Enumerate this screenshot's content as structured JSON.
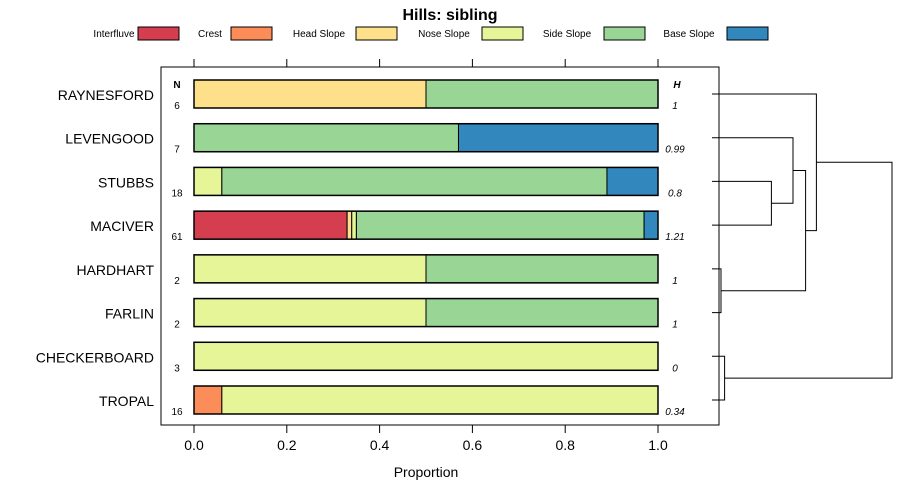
{
  "chart_data": {
    "type": "bar",
    "orientation": "horizontal-stacked",
    "title": "Hills: sibling",
    "xlabel": "Proportion",
    "xlim": [
      0,
      1
    ],
    "xticks": [
      0.0,
      0.2,
      0.4,
      0.6,
      0.8,
      1.0
    ],
    "xtick_labels": [
      "0.0",
      "0.2",
      "0.4",
      "0.6",
      "0.8",
      "1.0"
    ],
    "n_header": "N",
    "h_header": "H",
    "legend": [
      {
        "name": "Interfluve",
        "color": "#d53e4f"
      },
      {
        "name": "Crest",
        "color": "#fc8d59"
      },
      {
        "name": "Head Slope",
        "color": "#fee08b"
      },
      {
        "name": "Nose Slope",
        "color": "#e6f598"
      },
      {
        "name": "Side Slope",
        "color": "#99d594"
      },
      {
        "name": "Base Slope",
        "color": "#3288bd"
      }
    ],
    "categories": [
      "RAYNESFORD",
      "LEVENGOOD",
      "STUBBS",
      "MACIVER",
      "HARDHART",
      "FARLIN",
      "CHECKERBOARD",
      "TROPAL"
    ],
    "n": [
      "6",
      "7",
      "18",
      "61",
      "2",
      "2",
      "3",
      "16"
    ],
    "h": [
      "1",
      "0.99",
      "0.8",
      "1.21",
      "1",
      "1",
      "0",
      "0.34"
    ],
    "series": [
      {
        "name": "Interfluve",
        "values": [
          0,
          0,
          0,
          0.33,
          0,
          0,
          0,
          0
        ]
      },
      {
        "name": "Crest",
        "values": [
          0,
          0,
          0,
          0,
          0,
          0,
          0,
          0.06
        ]
      },
      {
        "name": "Head Slope",
        "values": [
          0.5,
          0,
          0,
          0.01,
          0,
          0,
          0,
          0
        ]
      },
      {
        "name": "Nose Slope",
        "values": [
          0,
          0,
          0.06,
          0.01,
          0.5,
          0.5,
          1.0,
          0.94
        ]
      },
      {
        "name": "Side Slope",
        "values": [
          0.5,
          0.57,
          0.83,
          0.62,
          0.5,
          0.5,
          0,
          0
        ]
      },
      {
        "name": "Base Slope",
        "values": [
          0,
          0.43,
          0.11,
          0.03,
          0,
          0,
          0,
          0
        ]
      }
    ],
    "dendrogram": {
      "merges": [
        {
          "a": "HARDHART",
          "b": "FARLIN",
          "height": 0.05
        },
        {
          "a": "CHECKERBOARD",
          "b": "TROPAL",
          "height": 0.07
        },
        {
          "a": "STUBBS",
          "b": "MACIVER",
          "height": 0.33
        },
        {
          "a": "LEVENGOOD",
          "b": "STUBBS+MACIVER",
          "height": 0.45
        },
        {
          "a": "LEVENGOOD+STUBBS+MACIVER",
          "b": "HARDHART+FARLIN",
          "height": 0.52
        },
        {
          "a": "RAYNESFORD",
          "b": "LEVENGOOD+STUBBS+MACIVER+HARDHART+FARLIN",
          "height": 0.58
        },
        {
          "a": "RAYNESFORD+LEVENGOOD+STUBBS+MACIVER+HARDHART+FARLIN",
          "b": "CHECKERBOARD+TROPAL",
          "height": 1.0
        }
      ]
    }
  }
}
